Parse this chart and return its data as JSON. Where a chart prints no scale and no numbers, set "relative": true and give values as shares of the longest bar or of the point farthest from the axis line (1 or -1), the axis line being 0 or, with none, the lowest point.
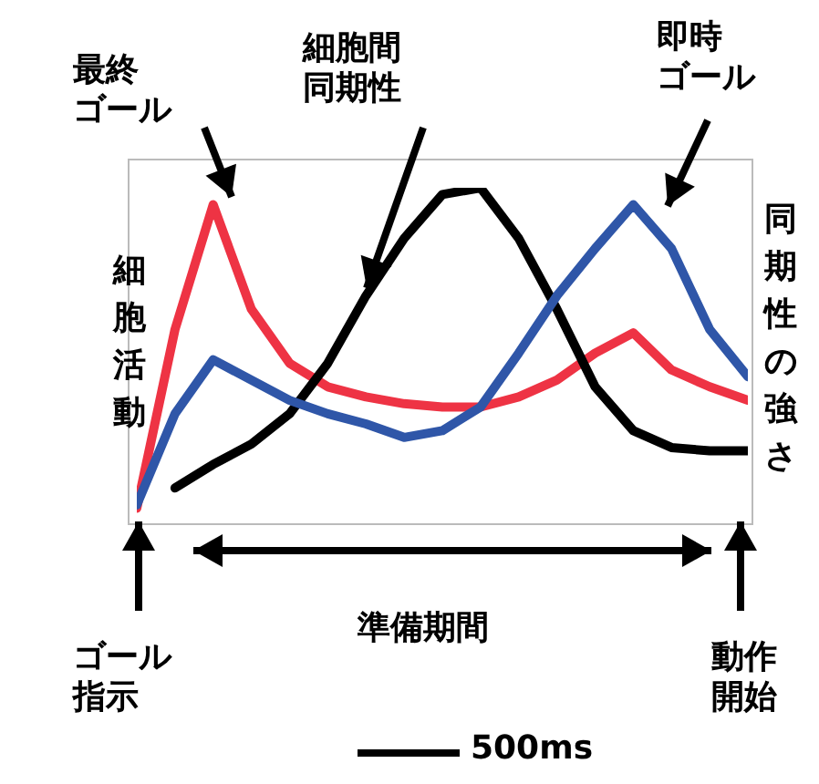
{
  "chart_data": {
    "type": "line",
    "relative": true,
    "ylabel": "細胞活動",
    "y2label": "同期性の強さ",
    "marker": "none",
    "line_style": "solid",
    "categories": [
      null,
      null,
      null,
      null,
      null,
      null,
      null,
      null,
      null,
      null,
      null,
      null,
      null,
      null,
      null,
      null,
      null
    ],
    "series": [
      {
        "name": "最終ゴール",
        "color": "#ee3344",
        "values": [
          0.05,
          0.58,
          0.95,
          0.64,
          0.48,
          0.41,
          0.38,
          0.36,
          0.35,
          0.35,
          0.38,
          0.43,
          0.51,
          0.57,
          0.46,
          0.41,
          0.37
        ]
      },
      {
        "name": "細胞間同期性",
        "color": "#000000",
        "values": [
          null,
          0.11,
          0.18,
          0.24,
          0.33,
          0.48,
          0.68,
          0.85,
          0.98,
          1,
          0.85,
          0.64,
          0.41,
          0.28,
          0.23,
          0.22,
          0.22
        ]
      },
      {
        "name": "即時ゴール",
        "color": "#2f56a8",
        "values": [
          0.06,
          0.33,
          0.49,
          0.43,
          0.37,
          0.33,
          0.3,
          0.26,
          0.28,
          0.35,
          0.51,
          0.68,
          0.82,
          0.95,
          0.82,
          0.58,
          0.44
        ]
      }
    ],
    "annotations": [
      "ゴール指示",
      "準備期間",
      "動作開始",
      "500ms"
    ]
  }
}
